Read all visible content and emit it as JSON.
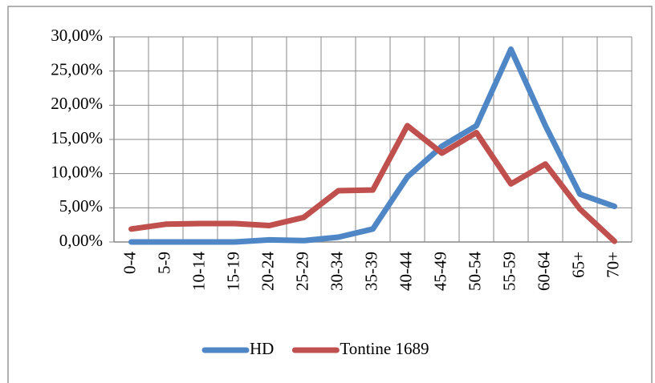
{
  "chart_data": {
    "type": "line",
    "categories": [
      "0-4",
      "5-9",
      "10-14",
      "15-19",
      "20-24",
      "25-29",
      "30-34",
      "35-39",
      "40-44",
      "45-49",
      "50-54",
      "55-59",
      "60-64",
      "65+",
      "70+"
    ],
    "series": [
      {
        "name": "HD",
        "color": "#4f87c6",
        "values": [
          0,
          0,
          0,
          0,
          0.3,
          0.2,
          0.7,
          1.9,
          9.5,
          14,
          17,
          28.2,
          17,
          7,
          5.2
        ]
      },
      {
        "name": "Tontine 1689",
        "color": "#c0504d",
        "values": [
          1.9,
          2.6,
          2.7,
          2.7,
          2.4,
          3.6,
          7.5,
          7.6,
          17,
          13,
          16,
          8.5,
          11.4,
          4.8,
          0.1
        ]
      }
    ],
    "ylim": [
      0,
      30
    ],
    "yticks": [
      {
        "value": 0,
        "label": "0,00%"
      },
      {
        "value": 5,
        "label": "5,00%"
      },
      {
        "value": 10,
        "label": "10,00%"
      },
      {
        "value": 15,
        "label": "15,00%"
      },
      {
        "value": 20,
        "label": "20,00%"
      },
      {
        "value": 25,
        "label": "25,00%"
      },
      {
        "value": 30,
        "label": "30,00%"
      }
    ],
    "grid": true,
    "legend": "bottom"
  }
}
